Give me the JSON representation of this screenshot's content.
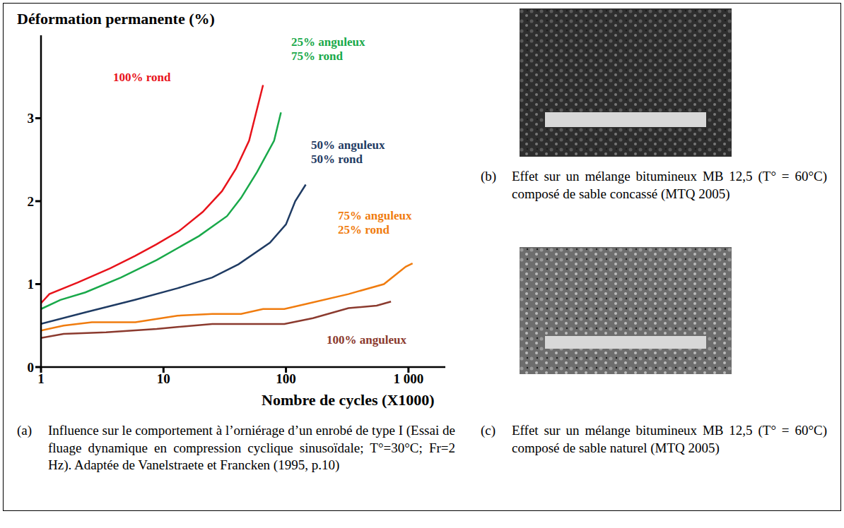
{
  "chart_data": {
    "type": "line",
    "x_label": "Nombre de cycles (X1000)",
    "y_label": "Déformation permanente (%)",
    "log": "x",
    "xlim": [
      1,
      2000
    ],
    "xticks": [
      1,
      10,
      100,
      {
        "value": 1000,
        "label": "1 000"
      }
    ],
    "ylim": [
      0,
      4
    ],
    "yticks": [
      0,
      1,
      2,
      3
    ],
    "grid": false,
    "series": [
      {
        "name": "100% rond",
        "color": "#e8131b",
        "x": [
          1,
          1.17,
          2.0,
          3.67,
          5.85,
          8.76,
          13.4,
          20.9,
          30,
          39,
          50,
          65
        ],
        "values": [
          0.77,
          0.88,
          1.02,
          1.19,
          1.34,
          1.48,
          1.64,
          1.87,
          2.12,
          2.39,
          2.73,
          3.4
        ]
      },
      {
        "name": "25% anguleux 75% rond",
        "color": "#19a94a",
        "x": [
          1,
          1.44,
          2.3,
          4.5,
          8.8,
          19.5,
          33,
          43,
          58,
          80,
          91
        ],
        "values": [
          0.7,
          0.81,
          0.9,
          1.08,
          1.29,
          1.58,
          1.82,
          2.04,
          2.35,
          2.73,
          3.07
        ]
      },
      {
        "name": "50% anguleux 50% rond",
        "color": "#1f3b63",
        "x": [
          1,
          2.3,
          5.85,
          13,
          25,
          41,
          74,
          100,
          119,
          145
        ],
        "values": [
          0.52,
          0.66,
          0.81,
          0.95,
          1.08,
          1.24,
          1.5,
          1.72,
          2.0,
          2.2
        ]
      },
      {
        "name": "75% anguleux 25% rond",
        "color": "#f07c0f",
        "x": [
          1,
          1.53,
          2.6,
          5.9,
          13,
          25,
          43,
          65,
          97,
          145,
          324,
          630,
          950,
          1080
        ],
        "values": [
          0.44,
          0.5,
          0.54,
          0.54,
          0.62,
          0.64,
          0.64,
          0.7,
          0.7,
          0.76,
          0.88,
          1.0,
          1.21,
          1.25
        ]
      },
      {
        "name": "100% anguleux",
        "color": "#8b3a2e",
        "x": [
          1,
          1.53,
          3.4,
          8.8,
          25,
          97,
          166,
          324,
          550,
          720
        ],
        "values": [
          0.35,
          0.4,
          0.42,
          0.46,
          0.52,
          0.52,
          0.59,
          0.71,
          0.74,
          0.79
        ]
      }
    ]
  },
  "captions": [
    {
      "letter": "(a)",
      "text": "Influence sur le comportement à l’orniérage d’un enrobé de type I (Essai de fluage dynamique en compression cyclique sinusoïdale; T°=30°C; Fr=2 Hz).  Adaptée de Vanelstraete et Francken (1995, p.10)"
    },
    {
      "letter": "(b)",
      "text": "Effet sur un mélange bitumineux MB 12,5 (T° = 60°C) composé de sable concassé (MTQ 2005)"
    },
    {
      "letter": "(c)",
      "text": "Effet sur un mélange bitumineux MB 12,5 (T° = 60°C) composé de sable naturel (MTQ 2005)"
    }
  ]
}
